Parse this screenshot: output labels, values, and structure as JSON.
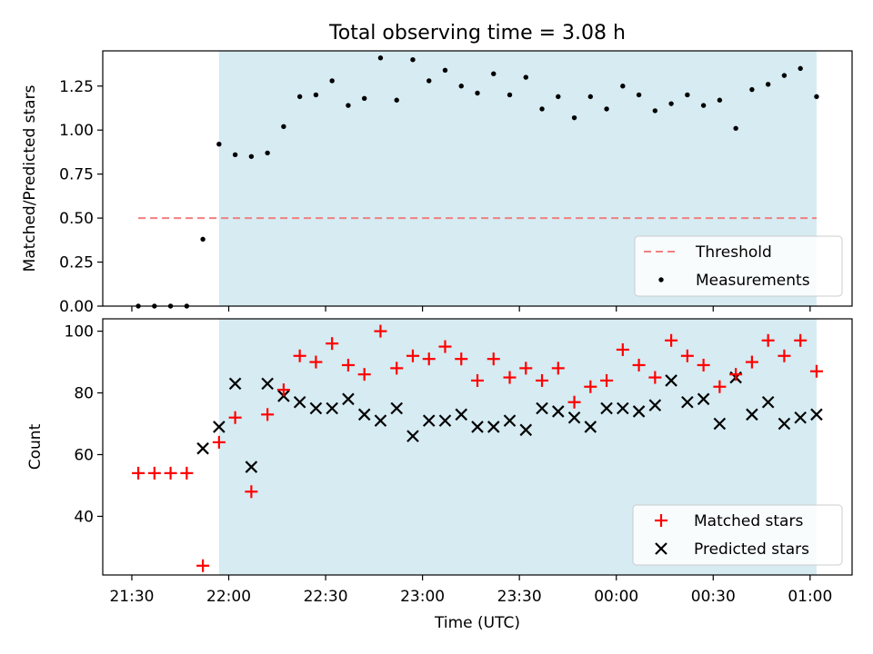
{
  "chart_data": [
    {
      "type": "scatter",
      "title": "Total observing time = 3.08 h",
      "ylabel": "Matched/Predicted stars",
      "xlabel": "",
      "ylim": [
        0,
        1.45
      ],
      "yticks": [
        "0.00",
        "0.25",
        "0.50",
        "0.75",
        "1.00",
        "1.25"
      ],
      "shaded_interval": [
        "21:57",
        "01:02"
      ],
      "legend_position": "lower right",
      "grid": false,
      "threshold": {
        "name": "Threshold",
        "value": 0.5,
        "x_range": [
          "21:32",
          "01:02"
        ],
        "color": "#f08080"
      },
      "series": [
        {
          "name": "Measurements",
          "color": "#000000",
          "marker": "dot",
          "points": [
            [
              "21:32",
              0.0
            ],
            [
              "21:37",
              0.0
            ],
            [
              "21:42",
              0.0
            ],
            [
              "21:47",
              0.0
            ],
            [
              "21:52",
              0.38
            ],
            [
              "21:57",
              0.92
            ],
            [
              "22:02",
              0.86
            ],
            [
              "22:07",
              0.85
            ],
            [
              "22:12",
              0.87
            ],
            [
              "22:17",
              1.02
            ],
            [
              "22:22",
              1.19
            ],
            [
              "22:27",
              1.2
            ],
            [
              "22:32",
              1.28
            ],
            [
              "22:37",
              1.14
            ],
            [
              "22:42",
              1.18
            ],
            [
              "22:47",
              1.41
            ],
            [
              "22:52",
              1.17
            ],
            [
              "22:57",
              1.4
            ],
            [
              "23:02",
              1.28
            ],
            [
              "23:07",
              1.34
            ],
            [
              "23:12",
              1.25
            ],
            [
              "23:17",
              1.21
            ],
            [
              "23:22",
              1.32
            ],
            [
              "23:27",
              1.2
            ],
            [
              "23:32",
              1.3
            ],
            [
              "23:37",
              1.12
            ],
            [
              "23:42",
              1.19
            ],
            [
              "23:47",
              1.07
            ],
            [
              "23:52",
              1.19
            ],
            [
              "23:57",
              1.12
            ],
            [
              "00:02",
              1.25
            ],
            [
              "00:07",
              1.2
            ],
            [
              "00:12",
              1.11
            ],
            [
              "00:17",
              1.15
            ],
            [
              "00:22",
              1.2
            ],
            [
              "00:27",
              1.14
            ],
            [
              "00:32",
              1.17
            ],
            [
              "00:37",
              1.01
            ],
            [
              "00:42",
              1.23
            ],
            [
              "00:47",
              1.26
            ],
            [
              "00:52",
              1.31
            ],
            [
              "00:57",
              1.35
            ],
            [
              "01:02",
              1.19
            ]
          ]
        }
      ]
    },
    {
      "type": "scatter",
      "title": "",
      "ylabel": "Count",
      "xlabel": "Time (UTC)",
      "ylim": [
        21,
        104
      ],
      "yticks": [
        "40",
        "60",
        "80",
        "100"
      ],
      "xticks": [
        "21:30",
        "22:00",
        "22:30",
        "23:00",
        "23:30",
        "00:00",
        "00:30",
        "01:00"
      ],
      "xlim": [
        "21:21",
        "01:13"
      ],
      "shaded_interval": [
        "21:57",
        "01:02"
      ],
      "legend_position": "lower right",
      "grid": false,
      "series": [
        {
          "name": "Matched stars",
          "color": "#ff0000",
          "marker": "plus",
          "points": [
            [
              "21:32",
              54
            ],
            [
              "21:37",
              54
            ],
            [
              "21:42",
              54
            ],
            [
              "21:47",
              54
            ],
            [
              "21:52",
              24
            ],
            [
              "21:57",
              64
            ],
            [
              "22:02",
              72
            ],
            [
              "22:07",
              48
            ],
            [
              "22:12",
              73
            ],
            [
              "22:17",
              81
            ],
            [
              "22:22",
              92
            ],
            [
              "22:27",
              90
            ],
            [
              "22:32",
              96
            ],
            [
              "22:37",
              89
            ],
            [
              "22:42",
              86
            ],
            [
              "22:47",
              100
            ],
            [
              "22:52",
              88
            ],
            [
              "22:57",
              92
            ],
            [
              "23:02",
              91
            ],
            [
              "23:07",
              95
            ],
            [
              "23:12",
              91
            ],
            [
              "23:17",
              84
            ],
            [
              "23:22",
              91
            ],
            [
              "23:27",
              85
            ],
            [
              "23:32",
              88
            ],
            [
              "23:37",
              84
            ],
            [
              "23:42",
              88
            ],
            [
              "23:47",
              77
            ],
            [
              "23:52",
              82
            ],
            [
              "23:57",
              84
            ],
            [
              "00:02",
              94
            ],
            [
              "00:07",
              89
            ],
            [
              "00:12",
              85
            ],
            [
              "00:17",
              97
            ],
            [
              "00:22",
              92
            ],
            [
              "00:27",
              89
            ],
            [
              "00:32",
              82
            ],
            [
              "00:37",
              86
            ],
            [
              "00:42",
              90
            ],
            [
              "00:47",
              97
            ],
            [
              "00:52",
              92
            ],
            [
              "00:57",
              97
            ],
            [
              "01:02",
              87
            ]
          ]
        },
        {
          "name": "Predicted stars",
          "color": "#000000",
          "marker": "x",
          "points": [
            [
              "21:52",
              62
            ],
            [
              "21:57",
              69
            ],
            [
              "22:02",
              83
            ],
            [
              "22:07",
              56
            ],
            [
              "22:12",
              83
            ],
            [
              "22:17",
              79
            ],
            [
              "22:22",
              77
            ],
            [
              "22:27",
              75
            ],
            [
              "22:32",
              75
            ],
            [
              "22:37",
              78
            ],
            [
              "22:42",
              73
            ],
            [
              "22:47",
              71
            ],
            [
              "22:52",
              75
            ],
            [
              "22:57",
              66
            ],
            [
              "23:02",
              71
            ],
            [
              "23:07",
              71
            ],
            [
              "23:12",
              73
            ],
            [
              "23:17",
              69
            ],
            [
              "23:22",
              69
            ],
            [
              "23:27",
              71
            ],
            [
              "23:32",
              68
            ],
            [
              "23:37",
              75
            ],
            [
              "23:42",
              74
            ],
            [
              "23:47",
              72
            ],
            [
              "23:52",
              69
            ],
            [
              "23:57",
              75
            ],
            [
              "00:02",
              75
            ],
            [
              "00:07",
              74
            ],
            [
              "00:12",
              76
            ],
            [
              "00:17",
              84
            ],
            [
              "00:22",
              77
            ],
            [
              "00:27",
              78
            ],
            [
              "00:32",
              70
            ],
            [
              "00:37",
              85
            ],
            [
              "00:42",
              73
            ],
            [
              "00:47",
              77
            ],
            [
              "00:52",
              70
            ],
            [
              "00:57",
              72
            ],
            [
              "01:02",
              73
            ]
          ]
        }
      ]
    }
  ]
}
